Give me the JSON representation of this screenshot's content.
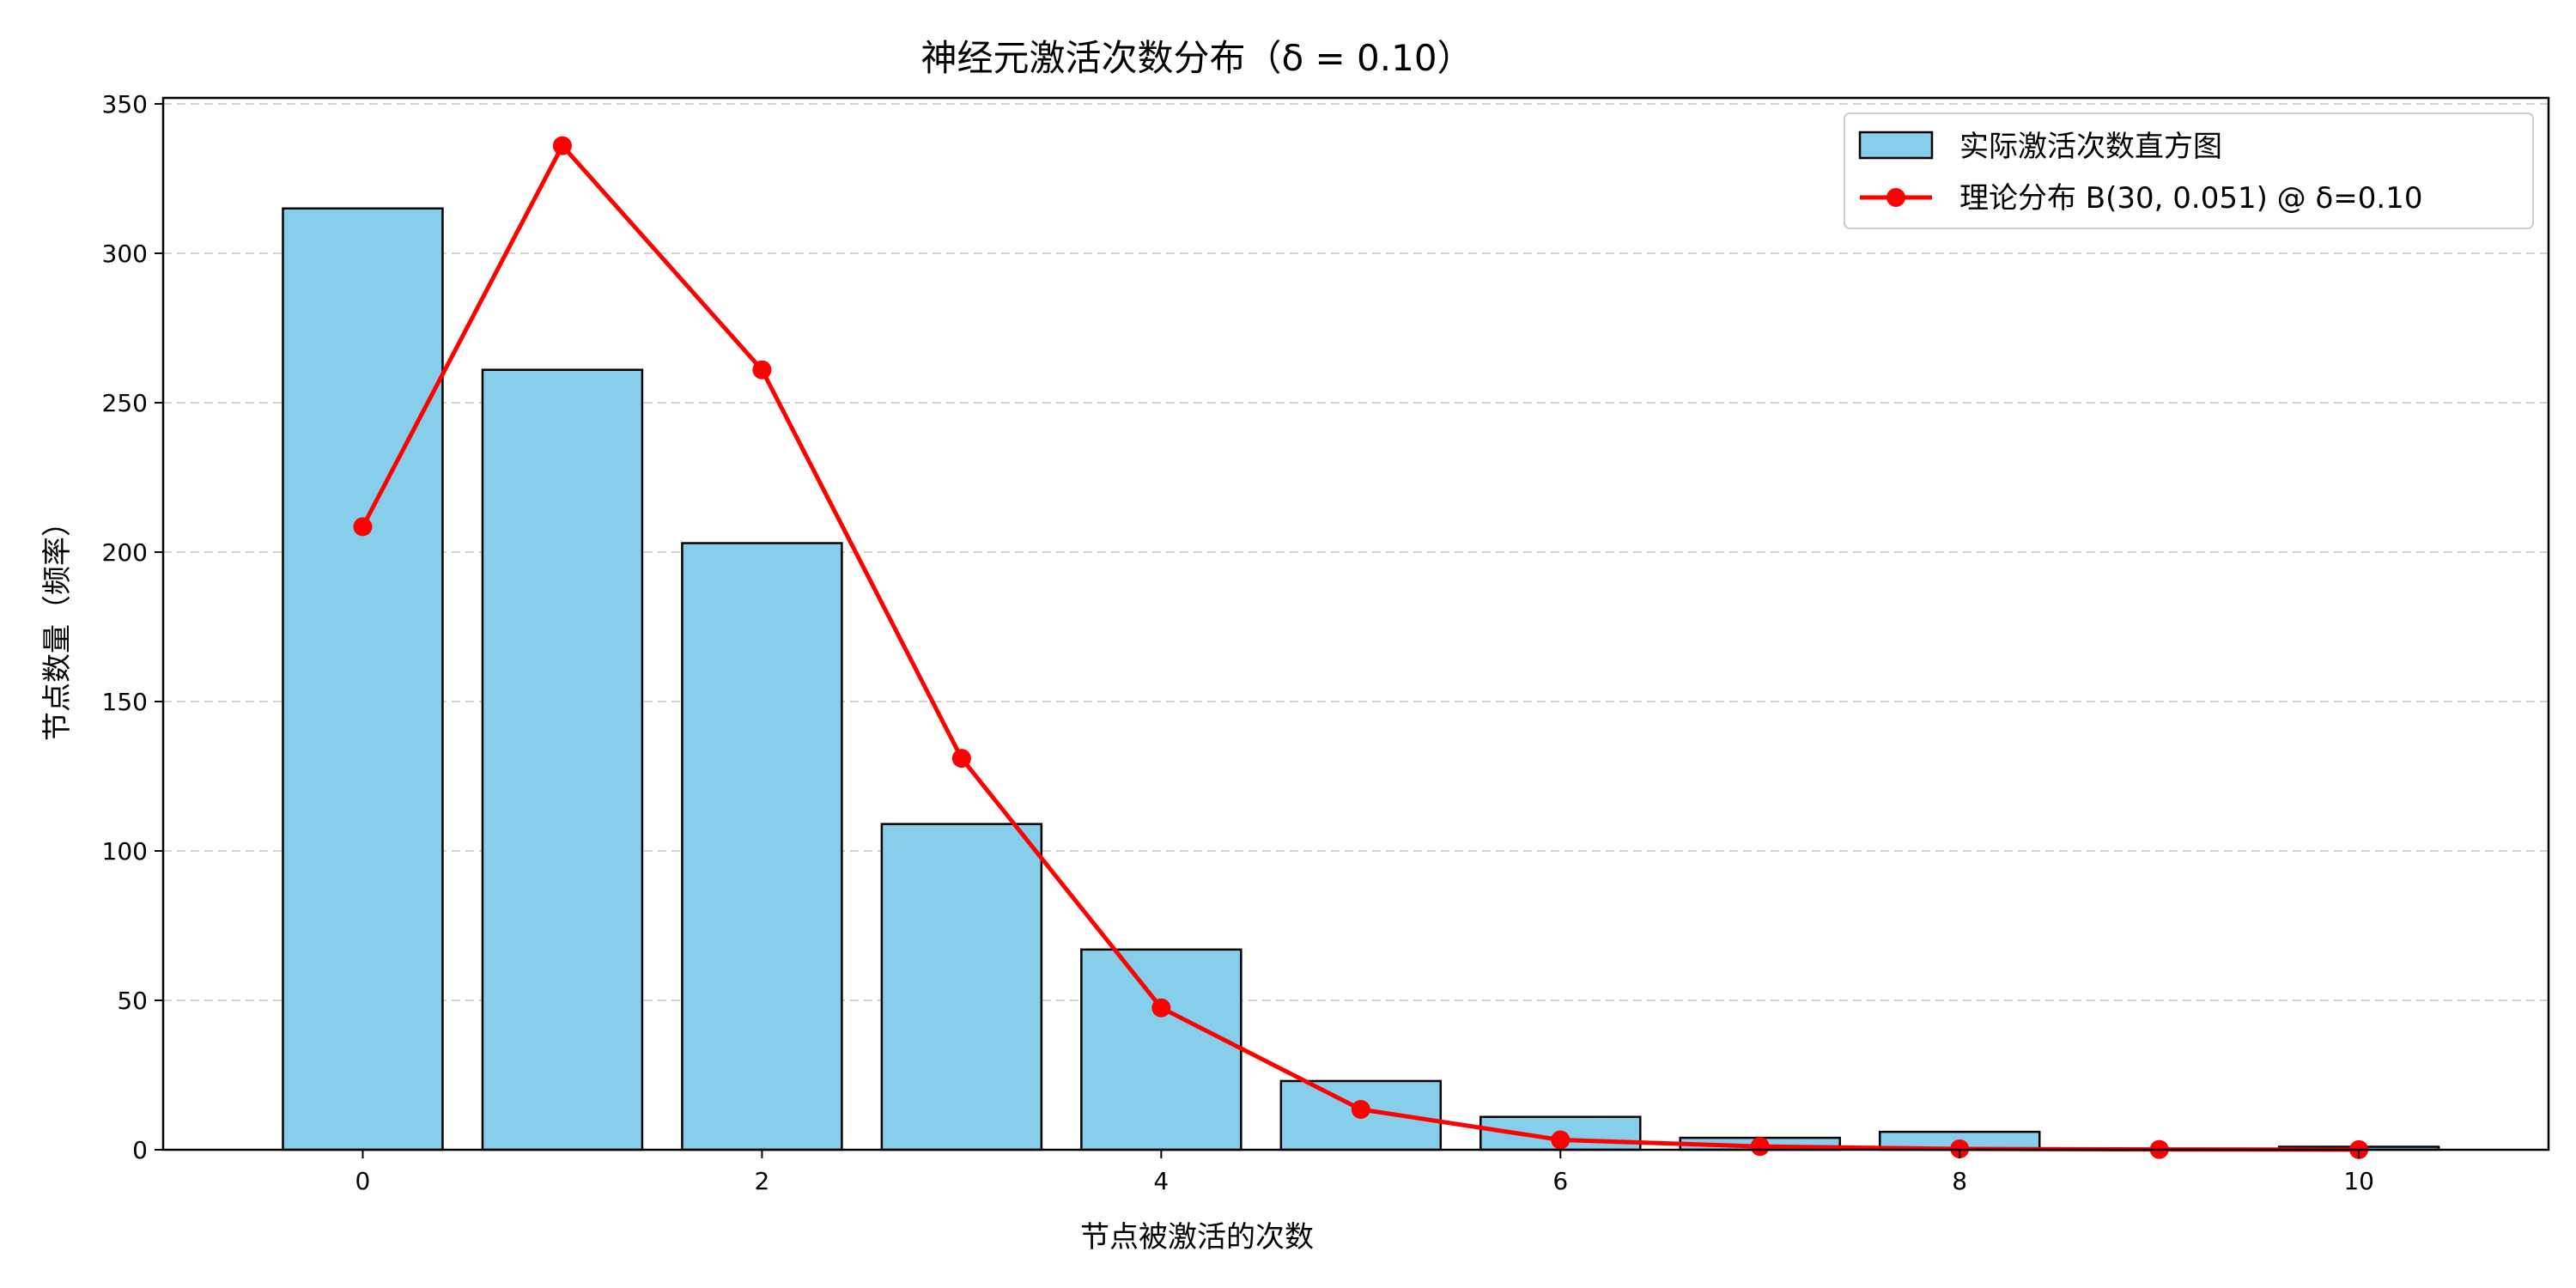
{
  "chart_data": {
    "type": "bar",
    "title": "神经元激活次数分布（δ = 0.10）",
    "xlabel": "节点被激活的次数",
    "ylabel": "节点数量（频率）",
    "xlim": [
      -1,
      10.95
    ],
    "ylim": [
      0,
      352
    ],
    "xticks": [
      0,
      2,
      4,
      6,
      8,
      10
    ],
    "yticks": [
      0,
      50,
      100,
      150,
      200,
      250,
      300,
      350
    ],
    "grid": "y-dashed",
    "legend_position": "top-right",
    "bar_color": "#87ceeb",
    "line_color": "#ff0000",
    "series": [
      {
        "name": "实际激活次数直方图",
        "kind": "bar",
        "x": [
          0,
          1,
          2,
          3,
          4,
          5,
          6,
          7,
          8,
          9,
          10
        ],
        "values": [
          315,
          261,
          203,
          109,
          67,
          23,
          11,
          4,
          6,
          0,
          1
        ]
      },
      {
        "name": "理论分布 B(30, 0.051) @ δ=0.10",
        "kind": "line",
        "x": [
          0,
          1,
          2,
          3,
          4,
          5,
          6,
          7,
          8,
          9,
          10
        ],
        "values": [
          208.5,
          336,
          261,
          131,
          47.5,
          13.5,
          3.3,
          1.1,
          0.3,
          0.1,
          0.05
        ]
      }
    ]
  }
}
